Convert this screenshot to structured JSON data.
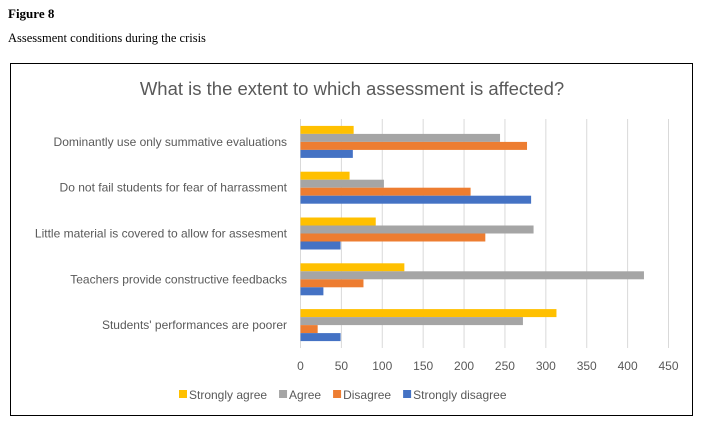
{
  "figure": {
    "label": "Figure 8",
    "caption": "Assessment conditions during the crisis"
  },
  "chart_data": {
    "type": "bar",
    "orientation": "horizontal",
    "title": "What is the extent to which assessment is affected?",
    "xlabel": "",
    "ylabel": "",
    "categories": [
      "Dominantly use only summative evaluations",
      "Do not fail students for fear of harrassment",
      "Little material is covered to allow for assesment",
      "Teachers provide constructive feedbacks",
      "Students' performances are poorer"
    ],
    "series": [
      {
        "name": "Strongly agree",
        "color": "#FFC000",
        "values": [
          65,
          60,
          92,
          127,
          313
        ]
      },
      {
        "name": "Agree",
        "color": "#A5A5A5",
        "values": [
          244,
          102,
          285,
          420,
          272
        ]
      },
      {
        "name": "Disagree",
        "color": "#ED7D31",
        "values": [
          277,
          208,
          226,
          77,
          21
        ]
      },
      {
        "name": "Strongly disagree",
        "color": "#4472C4",
        "values": [
          64,
          282,
          49,
          28,
          49
        ]
      }
    ],
    "xlim": [
      0,
      450
    ],
    "xticks": [
      0,
      50,
      100,
      150,
      200,
      250,
      300,
      350,
      400,
      450
    ],
    "grid": true,
    "legend_position": "bottom"
  }
}
